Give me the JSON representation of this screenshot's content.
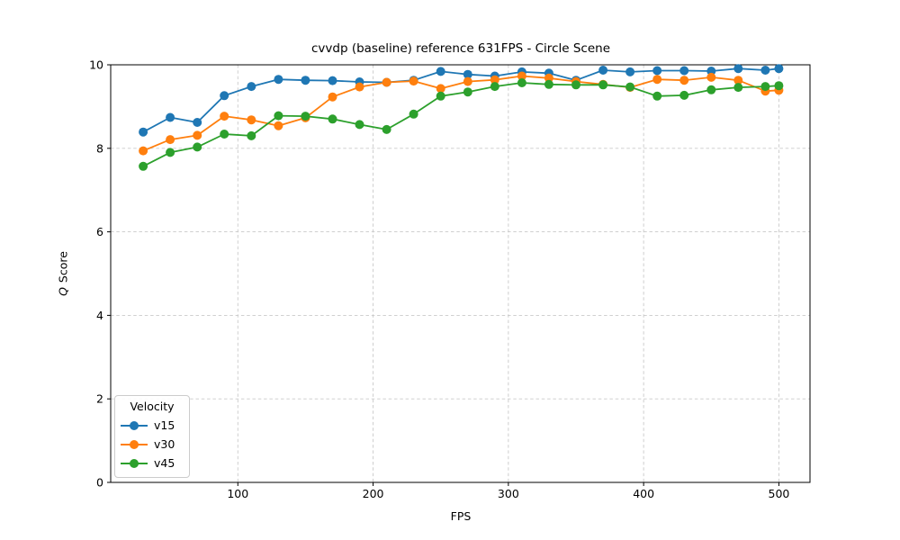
{
  "chart_data": {
    "type": "line",
    "title": "cvvdp (baseline) reference 631FPS - Circle Scene",
    "xlabel": "FPS",
    "ylabel": "Q Score",
    "ylabel_q": "Q",
    "ylabel_rest": "Score",
    "xlim": [
      6,
      523
    ],
    "ylim": [
      0,
      10
    ],
    "x_ticks": [
      100,
      200,
      300,
      400,
      500
    ],
    "y_ticks": [
      0,
      2,
      4,
      6,
      8,
      10
    ],
    "grid": true,
    "grid_style": "dashed",
    "legend": {
      "title": "Velocity",
      "position": "lower-left"
    },
    "x": [
      30,
      50,
      70,
      90,
      110,
      130,
      150,
      170,
      190,
      210,
      230,
      250,
      270,
      290,
      310,
      330,
      350,
      370,
      390,
      410,
      430,
      450,
      470,
      490,
      500
    ],
    "series": [
      {
        "name": "v15",
        "color": "#1f77b4",
        "values": [
          8.39,
          8.74,
          8.62,
          9.26,
          9.48,
          9.65,
          9.63,
          9.62,
          9.59,
          9.58,
          9.63,
          9.84,
          9.77,
          9.73,
          9.83,
          9.8,
          9.63,
          9.87,
          9.83,
          9.86,
          9.86,
          9.85,
          9.91,
          9.87,
          9.91
        ]
      },
      {
        "name": "v30",
        "color": "#ff7f0e",
        "values": [
          7.94,
          8.21,
          8.31,
          8.77,
          8.68,
          8.54,
          8.73,
          9.23,
          9.47,
          9.58,
          9.61,
          9.43,
          9.6,
          9.64,
          9.73,
          9.68,
          9.6,
          9.53,
          9.46,
          9.65,
          9.63,
          9.7,
          9.63,
          9.37,
          9.39
        ]
      },
      {
        "name": "v45",
        "color": "#2ca02c",
        "values": [
          7.57,
          7.9,
          8.03,
          8.34,
          8.3,
          8.78,
          8.77,
          8.7,
          8.57,
          8.45,
          8.82,
          9.25,
          9.35,
          9.48,
          9.57,
          9.53,
          9.52,
          9.52,
          9.47,
          9.25,
          9.27,
          9.4,
          9.46,
          9.48,
          9.5
        ]
      }
    ]
  }
}
